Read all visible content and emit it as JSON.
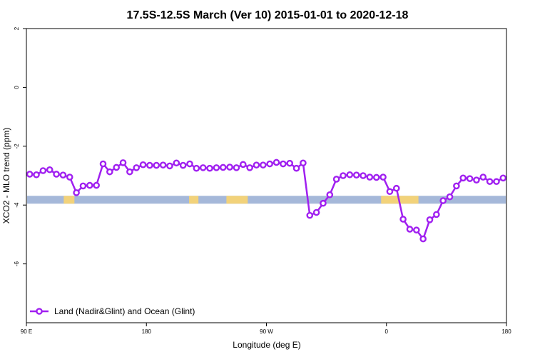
{
  "chart_data": {
    "type": "line",
    "title": "17.5S-12.5S March (Ver 10)   2015-01-01 to 2020-12-18",
    "xlabel": "Longitude (deg E)",
    "ylabel": "XCO2 - MLO trend (ppm)",
    "xlim": [
      90,
      450
    ],
    "ylim": [
      -8,
      2
    ],
    "x_ticks": [
      {
        "value": 90,
        "label": "90 E"
      },
      {
        "value": 180,
        "label": "180"
      },
      {
        "value": 270,
        "label": "90 W"
      },
      {
        "value": 360,
        "label": "0"
      },
      {
        "value": 450,
        "label": "180"
      }
    ],
    "y_ticks": [
      {
        "value": 2,
        "label": "2"
      },
      {
        "value": 0,
        "label": "0"
      },
      {
        "value": -2,
        "label": "-2"
      },
      {
        "value": -4,
        "label": "-4"
      },
      {
        "value": -6,
        "label": "-6"
      }
    ],
    "grid": false,
    "legend": {
      "position": "bottom-left",
      "entries": [
        "Land (Nadir&Glint) and Ocean (Glint)"
      ]
    },
    "series": [
      {
        "name": "Land (Nadir&Glint) and Ocean (Glint)",
        "color": "#a020f0",
        "x": [
          92.5,
          97.5,
          102.5,
          107.5,
          112.5,
          117.5,
          122.5,
          127.5,
          132.5,
          137.5,
          142.5,
          147.5,
          152.5,
          157.5,
          162.5,
          167.5,
          172.5,
          177.5,
          182.5,
          187.5,
          192.5,
          197.5,
          202.5,
          207.5,
          212.5,
          217.5,
          222.5,
          227.5,
          232.5,
          237.5,
          242.5,
          247.5,
          252.5,
          257.5,
          262.5,
          267.5,
          272.5,
          277.5,
          282.5,
          287.5,
          292.5,
          297.5,
          302.5,
          307.5,
          312.5,
          317.5,
          322.5,
          327.5,
          332.5,
          337.5,
          342.5,
          347.5,
          352.5,
          357.5,
          362.5,
          367.5,
          372.5,
          377.5,
          382.5,
          387.5,
          392.5,
          397.5,
          402.5,
          407.5,
          412.5,
          417.5,
          422.5,
          427.5,
          432.5,
          437.5,
          442.5,
          447.5
        ],
        "y": [
          -2.95,
          -2.97,
          -2.83,
          -2.8,
          -2.95,
          -2.98,
          -3.05,
          -3.58,
          -3.35,
          -3.33,
          -3.33,
          -2.6,
          -2.87,
          -2.72,
          -2.56,
          -2.87,
          -2.73,
          -2.63,
          -2.65,
          -2.65,
          -2.64,
          -2.67,
          -2.57,
          -2.65,
          -2.6,
          -2.75,
          -2.73,
          -2.75,
          -2.73,
          -2.72,
          -2.71,
          -2.73,
          -2.62,
          -2.73,
          -2.64,
          -2.64,
          -2.6,
          -2.55,
          -2.6,
          -2.58,
          -2.75,
          -2.57,
          -4.35,
          -4.25,
          -3.94,
          -3.65,
          -3.12,
          -3.0,
          -2.97,
          -2.98,
          -3.0,
          -3.05,
          -3.06,
          -3.05,
          -3.54,
          -3.43,
          -4.48,
          -4.82,
          -4.85,
          -5.15,
          -4.5,
          -4.32,
          -3.85,
          -3.72,
          -3.35,
          -3.08,
          -3.1,
          -3.15,
          -3.05,
          -3.2,
          -3.2,
          -3.08
        ]
      }
    ],
    "surface_strip": {
      "y_center": -3.82,
      "colors": {
        "ocean": "#a5b8d9",
        "land": "#f2d27a"
      },
      "land_x_ranges": [
        [
          118,
          126
        ],
        [
          212,
          219
        ],
        [
          240,
          256
        ],
        [
          356,
          384
        ],
        [
          493,
          498
        ]
      ]
    }
  }
}
